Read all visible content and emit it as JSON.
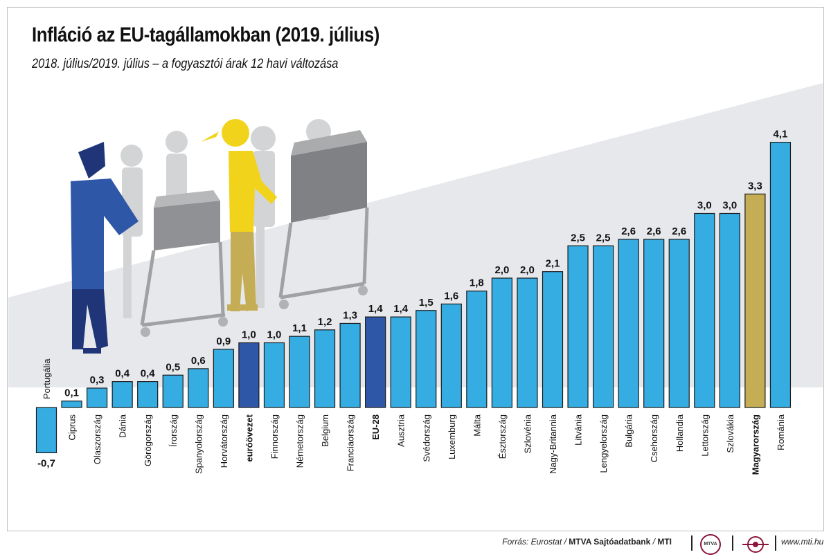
{
  "header": {
    "title": "Infláció az EU-tagállamokban (2019. július)",
    "subtitle": "2018. július/2019. július – a fogyasztói árak 12 havi változása"
  },
  "colors": {
    "bar_default": "#35ade3",
    "bar_eurozone": "#2f57a8",
    "bar_eu28": "#2f57a8",
    "bar_hungary": "#c5ad55",
    "background_band": "#e5e7ea"
  },
  "chart_data": {
    "type": "bar",
    "title": "Infláció az EU-tagállamokban (2019. július)",
    "subtitle": "2018. július/2019. július – a fogyasztói árak 12 havi változása",
    "xlabel": "",
    "ylabel": "",
    "categories": [
      "Portugália",
      "Ciprus",
      "Olaszország",
      "Dánia",
      "Görögország",
      "Írország",
      "Spanyolország",
      "Horvátország",
      "euróövezet",
      "Finnország",
      "Németország",
      "Belgium",
      "Franciaország",
      "EU-28",
      "Ausztria",
      "Svédország",
      "Luxemburg",
      "Málta",
      "Észtország",
      "Szlovénia",
      "Nagy-Britannia",
      "Litvánia",
      "Lengyelország",
      "Bulgária",
      "Csehország",
      "Hollandia",
      "Lettország",
      "Szlovákia",
      "Magyarország",
      "Románia"
    ],
    "values": [
      -0.7,
      0.1,
      0.3,
      0.4,
      0.4,
      0.5,
      0.6,
      0.9,
      1.0,
      1.0,
      1.1,
      1.2,
      1.3,
      1.4,
      1.4,
      1.5,
      1.6,
      1.8,
      2.0,
      2.0,
      2.1,
      2.5,
      2.5,
      2.6,
      2.6,
      2.6,
      3.0,
      3.0,
      3.3,
      4.1
    ],
    "value_labels": [
      "-0,7",
      "0,1",
      "0,3",
      "0,4",
      "0,4",
      "0,5",
      "0,6",
      "0,9",
      "1,0",
      "1,0",
      "1,1",
      "1,2",
      "1,3",
      "1,4",
      "1,4",
      "1,5",
      "1,6",
      "1,8",
      "2,0",
      "2,0",
      "2,1",
      "2,5",
      "2,5",
      "2,6",
      "2,6",
      "2,6",
      "3,0",
      "3,0",
      "3,3",
      "4,1"
    ],
    "highlight": {
      "euróövezet": "bar_eurozone",
      "EU-28": "bar_eu28",
      "Magyarország": "bar_hungary"
    },
    "bold_labels": [
      "euróövezet",
      "EU-28",
      "Magyarország"
    ],
    "ylim": [
      -0.7,
      4.1
    ],
    "grid": false,
    "legend": "none"
  },
  "footer": {
    "source_prefix": "Forrás: Eurostat / ",
    "source_bold": "MTVA Sajtóadatbank",
    "source_sep": " / ",
    "source_bold2": "MTI",
    "mtva_logo_text": "MTVA",
    "website": "www.mti.hu"
  }
}
